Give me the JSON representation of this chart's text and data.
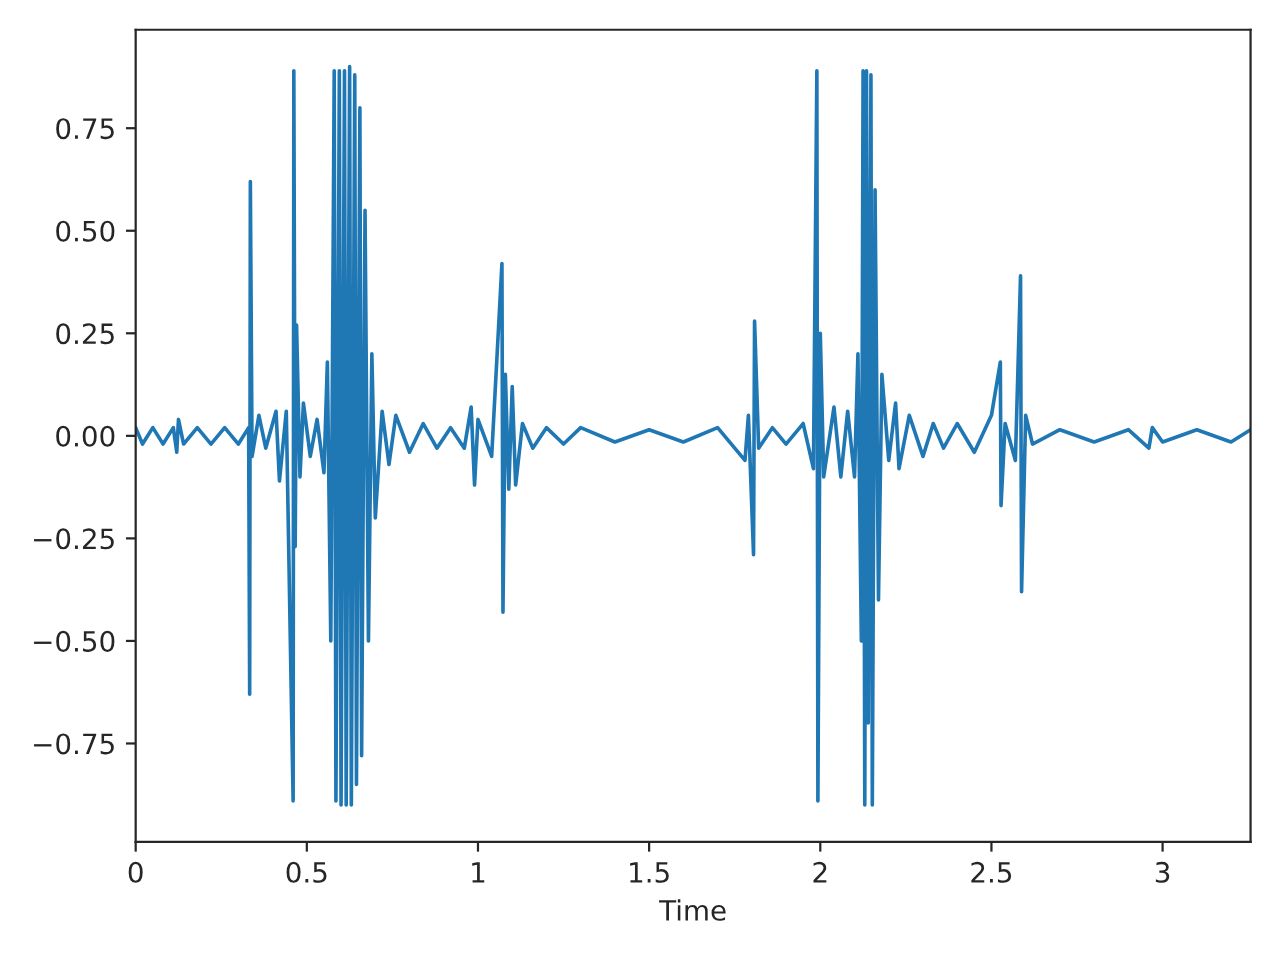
{
  "chart_data": {
    "type": "line",
    "xlabel": "Time",
    "xlim": [
      0,
      3.257
    ],
    "ylim": [
      -0.99,
      0.99
    ],
    "xticks": [
      0,
      0.5,
      1,
      1.5,
      2,
      2.5,
      3
    ],
    "yticks": [
      {
        "value": -0.75,
        "label": "−0.75"
      },
      {
        "value": -0.5,
        "label": "−0.50"
      },
      {
        "value": -0.25,
        "label": "−0.25"
      },
      {
        "value": 0,
        "label": "0.00"
      },
      {
        "value": 0.25,
        "label": "0.25"
      },
      {
        "value": 0.5,
        "label": "0.50"
      },
      {
        "value": 0.75,
        "label": "0.75"
      }
    ],
    "grid": false,
    "legend": false,
    "series": [
      {
        "color": "#1f77b4",
        "x": [
          0.0,
          0.02,
          0.05,
          0.08,
          0.11,
          0.12,
          0.125,
          0.14,
          0.18,
          0.22,
          0.26,
          0.3,
          0.33,
          0.333,
          0.335,
          0.34,
          0.36,
          0.38,
          0.41,
          0.42,
          0.44,
          0.46,
          0.462,
          0.466,
          0.47,
          0.48,
          0.49,
          0.51,
          0.53,
          0.55,
          0.56,
          0.57,
          0.58,
          0.585,
          0.595,
          0.6,
          0.61,
          0.615,
          0.625,
          0.63,
          0.64,
          0.645,
          0.655,
          0.66,
          0.67,
          0.68,
          0.69,
          0.7,
          0.72,
          0.74,
          0.76,
          0.8,
          0.84,
          0.88,
          0.92,
          0.96,
          0.98,
          0.99,
          1.0,
          1.04,
          1.07,
          1.073,
          1.08,
          1.09,
          1.1,
          1.11,
          1.13,
          1.16,
          1.2,
          1.25,
          1.3,
          1.4,
          1.5,
          1.6,
          1.7,
          1.78,
          1.79,
          1.805,
          1.808,
          1.82,
          1.86,
          1.9,
          1.95,
          1.98,
          1.99,
          1.993,
          2.0,
          2.01,
          2.04,
          2.06,
          2.08,
          2.1,
          2.11,
          2.12,
          2.125,
          2.13,
          2.135,
          2.14,
          2.148,
          2.152,
          2.16,
          2.17,
          2.18,
          2.2,
          2.22,
          2.23,
          2.26,
          2.3,
          2.33,
          2.36,
          2.4,
          2.45,
          2.5,
          2.526,
          2.528,
          2.54,
          2.57,
          2.585,
          2.588,
          2.6,
          2.62,
          2.7,
          2.8,
          2.9,
          2.96,
          2.97,
          3.0,
          3.1,
          3.2,
          3.257
        ],
        "values": [
          0.02,
          -0.02,
          0.02,
          -0.02,
          0.02,
          -0.04,
          0.04,
          -0.02,
          0.02,
          -0.02,
          0.02,
          -0.02,
          0.02,
          -0.63,
          0.62,
          -0.05,
          0.05,
          -0.03,
          0.06,
          -0.11,
          0.06,
          -0.89,
          0.89,
          -0.27,
          0.27,
          -0.1,
          0.08,
          -0.05,
          0.04,
          -0.09,
          0.18,
          -0.5,
          0.89,
          -0.89,
          0.89,
          -0.9,
          0.89,
          -0.9,
          0.9,
          -0.9,
          0.88,
          -0.85,
          0.8,
          -0.78,
          0.55,
          -0.5,
          0.2,
          -0.2,
          0.06,
          -0.07,
          0.05,
          -0.04,
          0.03,
          -0.03,
          0.02,
          -0.03,
          0.07,
          -0.12,
          0.04,
          -0.05,
          0.42,
          -0.43,
          0.15,
          -0.13,
          0.12,
          -0.12,
          0.03,
          -0.03,
          0.02,
          -0.02,
          0.02,
          -0.015,
          0.015,
          -0.015,
          0.02,
          -0.06,
          0.05,
          -0.29,
          0.28,
          -0.03,
          0.02,
          -0.02,
          0.03,
          -0.08,
          0.89,
          -0.89,
          0.25,
          -0.1,
          0.07,
          -0.1,
          0.06,
          -0.1,
          0.2,
          -0.5,
          0.89,
          -0.9,
          0.89,
          -0.7,
          0.88,
          -0.9,
          0.6,
          -0.4,
          0.15,
          -0.06,
          0.08,
          -0.08,
          0.05,
          -0.05,
          0.03,
          -0.03,
          0.03,
          -0.04,
          0.05,
          0.18,
          -0.17,
          0.03,
          -0.06,
          0.39,
          -0.38,
          0.05,
          -0.02,
          0.015,
          -0.015,
          0.015,
          -0.03,
          0.02,
          -0.015,
          0.015,
          -0.015,
          0.015
        ]
      }
    ]
  }
}
